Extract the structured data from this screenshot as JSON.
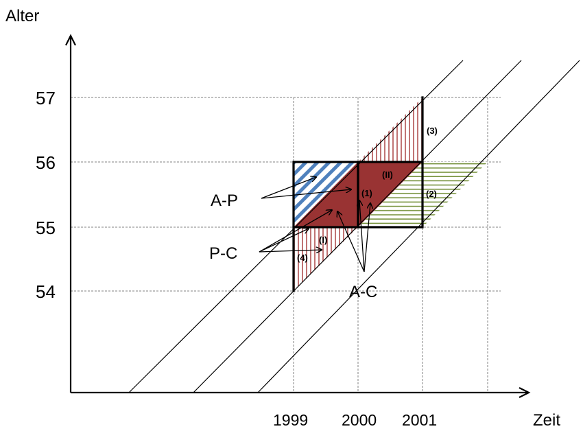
{
  "axes": {
    "y_title": "Alter",
    "x_title": "Zeit",
    "y_ticks": [
      "54",
      "55",
      "56",
      "57"
    ],
    "x_ticks": [
      "1999",
      "2000",
      "2001"
    ]
  },
  "labels": {
    "ap": "A-P",
    "pc": "P-C",
    "ac": "A-C",
    "r1": "(1)",
    "r2": "(2)",
    "r3": "(3)",
    "r4": "(4)",
    "rI": "(I)",
    "rII": "(II)"
  },
  "colors": {
    "dark_red": "#993333",
    "red_hatch": "#b05050",
    "blue_hatch": "#4f81bd",
    "green_hatch": "#76923c",
    "grid": "#808080"
  }
}
